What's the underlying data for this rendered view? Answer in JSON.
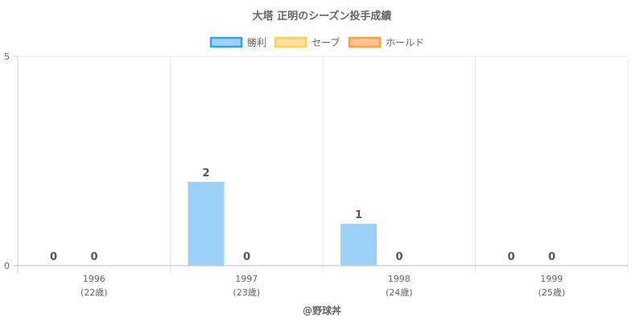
{
  "chart_data": {
    "type": "bar",
    "title": "大塔 正明のシーズン投手成績",
    "categories": [
      "1996",
      "1997",
      "1998",
      "1999"
    ],
    "category_sublabels": [
      "(22歳)",
      "(23歳)",
      "(24歳)",
      "(25歳)"
    ],
    "series": [
      {
        "name": "勝利",
        "values": [
          0,
          2,
          1,
          0
        ],
        "fill": "#9dd0f5",
        "stroke": "#36a2eb"
      },
      {
        "name": "セーブ",
        "values": [
          0,
          0,
          0,
          0
        ],
        "fill": "#ffe29a",
        "stroke": "#ffcd56"
      },
      {
        "name": "ホールド",
        "values": [
          null,
          null,
          null,
          null
        ],
        "fill": "#ffc48f",
        "stroke": "#ff9f40"
      }
    ],
    "ylim": [
      0,
      5
    ],
    "yticks": [
      "0",
      "5"
    ],
    "grid": true,
    "legend_position": "top",
    "footer": "@野球丼"
  }
}
